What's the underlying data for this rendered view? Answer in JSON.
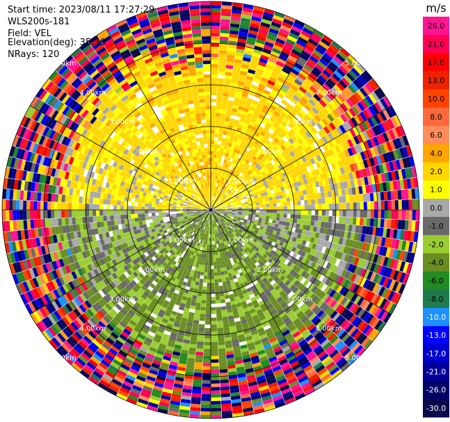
{
  "header": {
    "start_time": "Start time: 2023/08/11 17:27:29",
    "station": "WLS200s-181",
    "field": "Field: VEL",
    "elevation": "Elevation(deg): 35.30",
    "nrays": "NRays: 120"
  },
  "chart_data": {
    "type": "heatmap",
    "subtype": "ppi",
    "field": "VEL",
    "units": "m/s",
    "n_rays": 120,
    "range_max_km": 5.0,
    "range_rings_km": [
      1.0,
      2.0,
      3.0,
      4.0,
      5.0
    ],
    "ring_labels": [
      "1.00km",
      "2.00km",
      "3.00km",
      "4.00km",
      "5.00km"
    ],
    "colorbar": {
      "title": "m/s",
      "tick_labels": [
        "26.0",
        "21.0",
        "17.0",
        "13.0",
        "10.0",
        "8.0",
        "6.0",
        "4.0",
        "2.0",
        "1.0",
        "0.0",
        "-1.0",
        "-2.0",
        "-4.0",
        "-6.0",
        "-8.0",
        "-10.0",
        "-13.0",
        "-17.0",
        "-21.0",
        "-26.0",
        "-30.0"
      ],
      "bands": [
        {
          "min": 26,
          "max": 30,
          "color": "#ff1493"
        },
        {
          "min": 21,
          "max": 26,
          "color": "#ff0055"
        },
        {
          "min": 17,
          "max": 21,
          "color": "#ff0000"
        },
        {
          "min": 13,
          "max": 17,
          "color": "#ee2200"
        },
        {
          "min": 10,
          "max": 13,
          "color": "#ff4400"
        },
        {
          "min": 8,
          "max": 10,
          "color": "#ff6a3c"
        },
        {
          "min": 6,
          "max": 8,
          "color": "#ff8c5a"
        },
        {
          "min": 4,
          "max": 6,
          "color": "#ffa500"
        },
        {
          "min": 2,
          "max": 4,
          "color": "#ffd700"
        },
        {
          "min": 1,
          "max": 2,
          "color": "#ffff00"
        },
        {
          "min": 0,
          "max": 1,
          "color": "#a9a9a9"
        },
        {
          "min": -1,
          "max": 0,
          "color": "#696969"
        },
        {
          "min": -2,
          "max": -1,
          "color": "#9acd32"
        },
        {
          "min": -4,
          "max": -2,
          "color": "#6b8e23"
        },
        {
          "min": -6,
          "max": -4,
          "color": "#228b22"
        },
        {
          "min": -8,
          "max": -6,
          "color": "#1e7a4a"
        },
        {
          "min": -10,
          "max": -8,
          "color": "#1e90ff"
        },
        {
          "min": -13,
          "max": -10,
          "color": "#0000ff"
        },
        {
          "min": -17,
          "max": -13,
          "color": "#0000cd"
        },
        {
          "min": -21,
          "max": -17,
          "color": "#000099"
        },
        {
          "min": -26,
          "max": -21,
          "color": "#000066"
        },
        {
          "min": -30,
          "max": -26,
          "color": "#0a0a4a"
        }
      ]
    },
    "pattern": "inner ~3.5 km: near-zero to slightly positive velocities (yellow/grey) to the north, slightly negative (green) to the south; outer gates noisy across full colour range"
  }
}
